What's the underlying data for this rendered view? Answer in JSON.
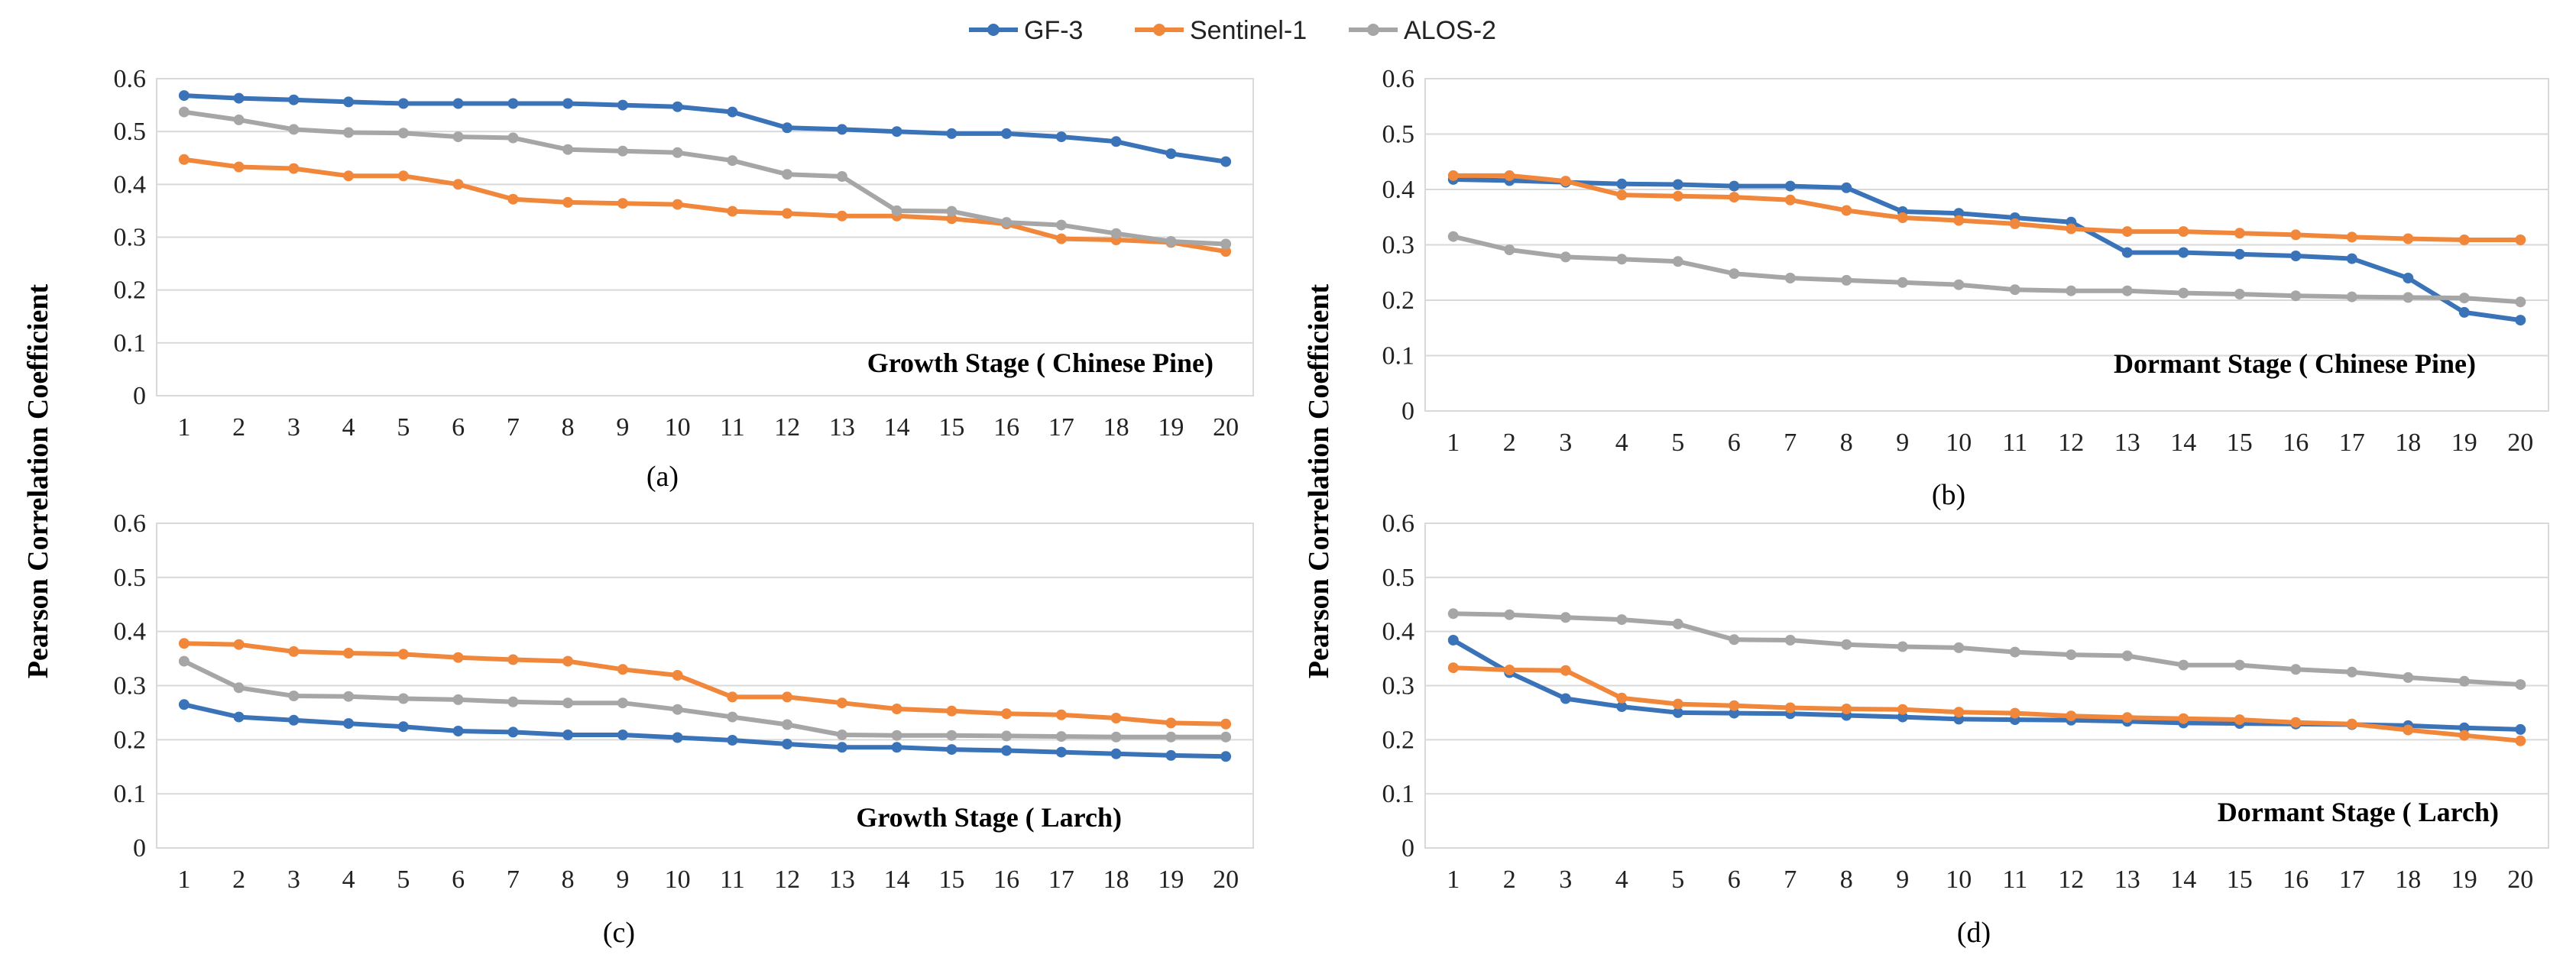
{
  "legend": [
    {
      "name": "GF-3",
      "color": "#3a73b8"
    },
    {
      "name": "Sentinel-1",
      "color": "#f0873a"
    },
    {
      "name": "ALOS-2",
      "color": "#a6a6a6"
    }
  ],
  "ylabel_text": "Pearson Correlation  Coefficient",
  "chart_data": [
    {
      "type": "line",
      "panel": "(a)",
      "title": "Growth Stage ( Chinese Pine)",
      "x": [
        1,
        2,
        3,
        4,
        5,
        6,
        7,
        8,
        9,
        10,
        11,
        12,
        13,
        14,
        15,
        16,
        17,
        18,
        19,
        20
      ],
      "x_ticks": [
        "1",
        "2",
        "3",
        "4",
        "5",
        "6",
        "7",
        "8",
        "9",
        "10",
        "11",
        "12",
        "13",
        "14",
        "15",
        "16",
        "17",
        "18",
        "19",
        "20"
      ],
      "ylim": [
        0,
        0.6
      ],
      "y_ticks": [
        "0",
        "0.1",
        "0.2",
        "0.3",
        "0.4",
        "0.5",
        "0.6"
      ],
      "ylabel": "Pearson Correlation  Coefficient",
      "grid": true,
      "series": [
        {
          "name": "GF-3",
          "values": [
            0.568,
            0.563,
            0.56,
            0.556,
            0.553,
            0.553,
            0.553,
            0.553,
            0.55,
            0.547,
            0.537,
            0.507,
            0.504,
            0.5,
            0.496,
            0.496,
            0.49,
            0.481,
            0.458,
            0.443
          ]
        },
        {
          "name": "Sentinel-1",
          "values": [
            0.447,
            0.433,
            0.43,
            0.416,
            0.416,
            0.4,
            0.372,
            0.366,
            0.364,
            0.362,
            0.349,
            0.345,
            0.34,
            0.34,
            0.335,
            0.325,
            0.297,
            0.295,
            0.29,
            0.273
          ]
        },
        {
          "name": "ALOS-2",
          "values": [
            0.537,
            0.522,
            0.504,
            0.498,
            0.497,
            0.49,
            0.488,
            0.466,
            0.463,
            0.46,
            0.445,
            0.419,
            0.415,
            0.35,
            0.349,
            0.328,
            0.323,
            0.307,
            0.292,
            0.287
          ]
        }
      ]
    },
    {
      "type": "line",
      "panel": "(b)",
      "title": "Dormant Stage ( Chinese Pine)",
      "x": [
        1,
        2,
        3,
        4,
        5,
        6,
        7,
        8,
        9,
        10,
        11,
        12,
        13,
        14,
        15,
        16,
        17,
        18,
        19,
        20
      ],
      "x_ticks": [
        "1",
        "2",
        "3",
        "4",
        "5",
        "6",
        "7",
        "8",
        "9",
        "10",
        "11",
        "12",
        "13",
        "14",
        "15",
        "16",
        "17",
        "18",
        "19",
        "20"
      ],
      "ylim": [
        0,
        0.6
      ],
      "y_ticks": [
        "0",
        "0.1",
        "0.2",
        "0.3",
        "0.4",
        "0.5",
        "0.6"
      ],
      "ylabel": "Pearson Correlation  Coefficient",
      "grid": true,
      "series": [
        {
          "name": "GF-3",
          "values": [
            0.418,
            0.416,
            0.413,
            0.41,
            0.409,
            0.406,
            0.406,
            0.403,
            0.36,
            0.357,
            0.349,
            0.341,
            0.286,
            0.286,
            0.283,
            0.28,
            0.275,
            0.24,
            0.178,
            0.164
          ]
        },
        {
          "name": "Sentinel-1",
          "values": [
            0.425,
            0.425,
            0.415,
            0.39,
            0.388,
            0.386,
            0.381,
            0.362,
            0.349,
            0.344,
            0.338,
            0.329,
            0.324,
            0.324,
            0.321,
            0.318,
            0.314,
            0.311,
            0.309,
            0.309
          ]
        },
        {
          "name": "ALOS-2",
          "values": [
            0.315,
            0.291,
            0.278,
            0.274,
            0.27,
            0.248,
            0.24,
            0.236,
            0.232,
            0.228,
            0.219,
            0.217,
            0.217,
            0.213,
            0.211,
            0.208,
            0.206,
            0.205,
            0.204,
            0.197
          ]
        }
      ]
    },
    {
      "type": "line",
      "panel": "(c)",
      "title": "Growth Stage ( Larch)",
      "x": [
        1,
        2,
        3,
        4,
        5,
        6,
        7,
        8,
        9,
        10,
        11,
        12,
        13,
        14,
        15,
        16,
        17,
        18,
        19,
        20
      ],
      "x_ticks": [
        "1",
        "2",
        "3",
        "4",
        "5",
        "6",
        "7",
        "8",
        "9",
        "10",
        "11",
        "12",
        "13",
        "14",
        "15",
        "16",
        "17",
        "18",
        "19",
        "20"
      ],
      "ylim": [
        0,
        0.6
      ],
      "y_ticks": [
        "0",
        "0.1",
        "0.2",
        "0.3",
        "0.4",
        "0.5",
        "0.6"
      ],
      "ylabel": "Pearson Correlation  Coefficient",
      "grid": true,
      "series": [
        {
          "name": "GF-3",
          "values": [
            0.265,
            0.242,
            0.236,
            0.23,
            0.224,
            0.216,
            0.214,
            0.209,
            0.209,
            0.204,
            0.199,
            0.192,
            0.186,
            0.186,
            0.182,
            0.18,
            0.177,
            0.174,
            0.171,
            0.169
          ]
        },
        {
          "name": "Sentinel-1",
          "values": [
            0.378,
            0.376,
            0.363,
            0.36,
            0.358,
            0.352,
            0.348,
            0.345,
            0.33,
            0.319,
            0.279,
            0.279,
            0.268,
            0.257,
            0.253,
            0.248,
            0.246,
            0.24,
            0.231,
            0.229
          ]
        },
        {
          "name": "ALOS-2",
          "values": [
            0.345,
            0.296,
            0.281,
            0.28,
            0.276,
            0.274,
            0.27,
            0.268,
            0.268,
            0.256,
            0.242,
            0.228,
            0.209,
            0.208,
            0.208,
            0.207,
            0.206,
            0.205,
            0.205,
            0.205
          ]
        }
      ]
    },
    {
      "type": "line",
      "panel": "(d)",
      "title": "Dormant Stage ( Larch)",
      "x": [
        1,
        2,
        3,
        4,
        5,
        6,
        7,
        8,
        9,
        10,
        11,
        12,
        13,
        14,
        15,
        16,
        17,
        18,
        19,
        20
      ],
      "x_ticks": [
        "1",
        "2",
        "3",
        "4",
        "5",
        "6",
        "7",
        "8",
        "9",
        "10",
        "11",
        "12",
        "13",
        "14",
        "15",
        "16",
        "17",
        "18",
        "19",
        "20"
      ],
      "ylim": [
        0,
        0.6
      ],
      "y_ticks": [
        "0",
        "0.1",
        "0.2",
        "0.3",
        "0.4",
        "0.5",
        "0.6"
      ],
      "ylabel": "Pearson Correlation  Coefficient",
      "grid": true,
      "series": [
        {
          "name": "GF-3",
          "values": [
            0.384,
            0.324,
            0.276,
            0.261,
            0.25,
            0.249,
            0.248,
            0.245,
            0.242,
            0.238,
            0.237,
            0.236,
            0.234,
            0.231,
            0.23,
            0.229,
            0.228,
            0.226,
            0.222,
            0.219
          ]
        },
        {
          "name": "Sentinel-1",
          "values": [
            0.333,
            0.329,
            0.328,
            0.277,
            0.266,
            0.263,
            0.259,
            0.257,
            0.256,
            0.251,
            0.249,
            0.244,
            0.241,
            0.239,
            0.237,
            0.232,
            0.229,
            0.218,
            0.208,
            0.198
          ]
        },
        {
          "name": "ALOS-2",
          "values": [
            0.433,
            0.431,
            0.426,
            0.422,
            0.414,
            0.385,
            0.384,
            0.376,
            0.372,
            0.37,
            0.362,
            0.357,
            0.355,
            0.338,
            0.338,
            0.33,
            0.325,
            0.315,
            0.308,
            0.302
          ]
        }
      ]
    }
  ]
}
